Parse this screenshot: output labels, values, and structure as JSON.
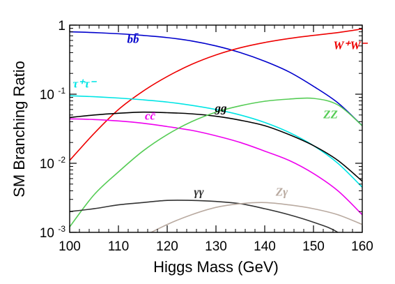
{
  "chart_data": {
    "type": "line",
    "title": "",
    "xlabel": "Higgs Mass (GeV)",
    "ylabel": "SM Branching Ratio",
    "xlim": [
      100,
      160
    ],
    "ylim": [
      0.001,
      1
    ],
    "yscale": "log",
    "grid": false,
    "x_ticks": [
      "100",
      "110",
      "120",
      "130",
      "140",
      "150",
      "160"
    ],
    "y_ticks": [
      {
        "base": "10",
        "exp": "-3"
      },
      {
        "base": "10",
        "exp": "-2"
      },
      {
        "base": "10",
        "exp": "-1"
      },
      {
        "base": "1",
        "exp": ""
      }
    ],
    "series": [
      {
        "name": "bb̄",
        "color": "#0000cc",
        "x": [
          100,
          105,
          110,
          115,
          120,
          125,
          130,
          135,
          140,
          145,
          150,
          155,
          160
        ],
        "y": [
          0.8,
          0.78,
          0.75,
          0.71,
          0.66,
          0.59,
          0.5,
          0.4,
          0.3,
          0.21,
          0.13,
          0.075,
          0.035
        ]
      },
      {
        "name": "W⁺W⁻",
        "color": "#ee0000",
        "x": [
          100,
          105,
          110,
          115,
          120,
          125,
          130,
          135,
          140,
          145,
          150,
          155,
          160
        ],
        "y": [
          0.011,
          0.027,
          0.06,
          0.11,
          0.18,
          0.27,
          0.37,
          0.47,
          0.56,
          0.64,
          0.71,
          0.78,
          0.88
        ]
      },
      {
        "name": "τ⁺τ⁻",
        "color": "#00e5e5",
        "x": [
          100,
          105,
          110,
          115,
          120,
          125,
          130,
          135,
          140,
          145,
          150,
          155,
          160
        ],
        "y": [
          0.095,
          0.092,
          0.088,
          0.083,
          0.077,
          0.069,
          0.06,
          0.05,
          0.039,
          0.028,
          0.018,
          0.01,
          0.0045
        ]
      },
      {
        "name": "gg",
        "color": "#000000",
        "x": [
          100,
          105,
          110,
          115,
          120,
          125,
          130,
          135,
          140,
          145,
          150,
          155,
          160
        ],
        "y": [
          0.046,
          0.05,
          0.053,
          0.055,
          0.054,
          0.052,
          0.048,
          0.042,
          0.035,
          0.026,
          0.018,
          0.011,
          0.0055
        ]
      },
      {
        "name": "cc̄",
        "color": "#ee00ee",
        "x": [
          100,
          105,
          110,
          115,
          120,
          125,
          130,
          135,
          140,
          145,
          150,
          155,
          160
        ],
        "y": [
          0.044,
          0.043,
          0.041,
          0.038,
          0.034,
          0.03,
          0.025,
          0.02,
          0.015,
          0.011,
          0.0071,
          0.004,
          0.0018
        ]
      },
      {
        "name": "ZZ",
        "color": "#55cc55",
        "x": [
          100,
          105,
          110,
          115,
          120,
          125,
          130,
          135,
          140,
          145,
          150,
          155,
          160
        ],
        "y": [
          0.0012,
          0.0035,
          0.0075,
          0.015,
          0.026,
          0.04,
          0.055,
          0.068,
          0.079,
          0.085,
          0.087,
          0.07,
          0.035
        ]
      },
      {
        "name": "γγ",
        "color": "#333333",
        "x": [
          100,
          105,
          110,
          115,
          120,
          125,
          130,
          135,
          140,
          145,
          150,
          155,
          160
        ],
        "y": [
          0.002,
          0.0022,
          0.0025,
          0.0027,
          0.0029,
          0.0029,
          0.0028,
          0.0026,
          0.0022,
          0.0018,
          0.0014,
          0.001,
          0.0005
        ]
      },
      {
        "name": "Zγ",
        "color": "#b9aaa0",
        "x": [
          114,
          120,
          125,
          130,
          135,
          140,
          145,
          150,
          155,
          160
        ],
        "y": [
          0.0008,
          0.0013,
          0.0018,
          0.0023,
          0.0026,
          0.0027,
          0.0025,
          0.0022,
          0.0018,
          0.0013
        ]
      }
    ],
    "labels": [
      {
        "series": "bb̄",
        "text": "bb̄",
        "x": 113,
        "y": 0.55
      },
      {
        "series": "W⁺W⁻",
        "text": "W⁺W⁻",
        "x": 157.5,
        "y": 0.45
      },
      {
        "series": "τ⁺τ⁻",
        "text": "τ⁺τ⁻",
        "x": 103.0,
        "y": 0.125
      },
      {
        "series": "gg",
        "text": "gg",
        "x": 131.0,
        "y": 0.055
      },
      {
        "series": "cc̄",
        "text": "cc̄",
        "x": 116.5,
        "y": 0.043
      },
      {
        "series": "ZZ",
        "text": "ZZ",
        "x": 153.5,
        "y": 0.045
      },
      {
        "series": "γγ",
        "text": "γγ",
        "x": 126.5,
        "y": 0.0034
      },
      {
        "series": "Zγ",
        "text": "Zγ",
        "x": 143.5,
        "y": 0.0034
      }
    ]
  }
}
